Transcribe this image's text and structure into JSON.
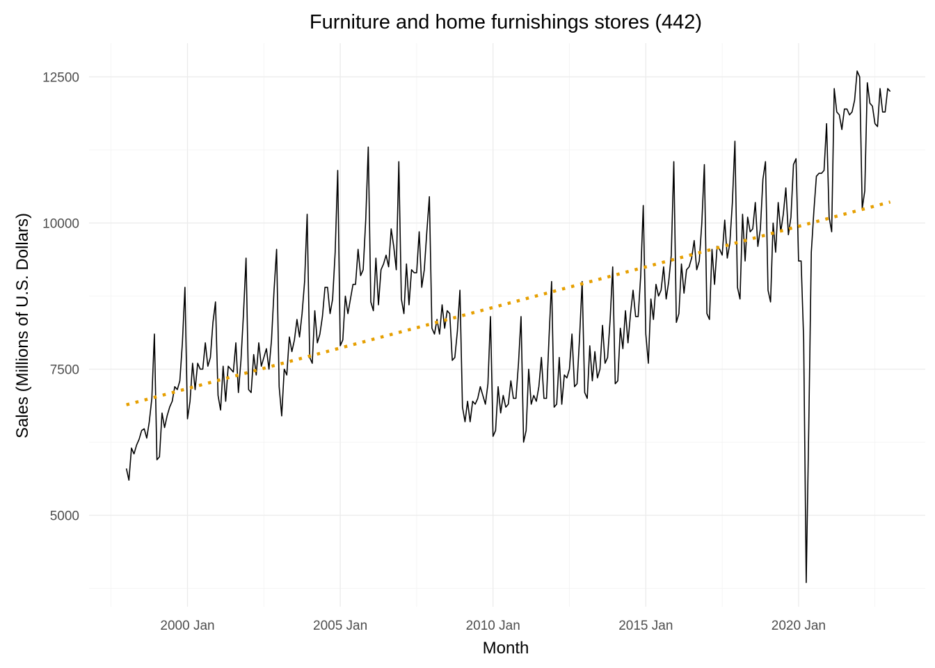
{
  "chart_data": {
    "type": "line",
    "title": "Furniture and home furnishings stores (442)",
    "xlabel": "Month",
    "ylabel": "Sales (Millions of U.S. Dollars)",
    "x_ticks": [
      "2000 Jan",
      "2005 Jan",
      "2010 Jan",
      "2015 Jan",
      "2020 Jan"
    ],
    "y_ticks": [
      5000,
      7500,
      10000,
      12500
    ],
    "ylim": [
      3700,
      13150
    ],
    "x_start": "1998 Jan",
    "grid": true,
    "colors": {
      "series": "#000000",
      "trend": "#E69F00"
    },
    "series": [
      {
        "style": "solid",
        "values": [
          5800,
          5600,
          6150,
          6050,
          6200,
          6300,
          6450,
          6480,
          6320,
          6600,
          7000,
          8100,
          5950,
          6000,
          6750,
          6500,
          6700,
          6850,
          6950,
          7200,
          7150,
          7300,
          7950,
          8900,
          6650,
          6950,
          7600,
          7150,
          7600,
          7500,
          7500,
          7950,
          7550,
          7700,
          8300,
          8650,
          7050,
          6800,
          7550,
          6950,
          7550,
          7500,
          7450,
          7950,
          7100,
          7650,
          8450,
          9400,
          7150,
          7100,
          7750,
          7400,
          7950,
          7550,
          7700,
          7850,
          7500,
          8000,
          8850,
          9550,
          7200,
          6700,
          7500,
          7400,
          8050,
          7800,
          8000,
          8350,
          8050,
          8450,
          9000,
          10150,
          7700,
          7600,
          8500,
          7950,
          8100,
          8400,
          8900,
          8900,
          8450,
          8700,
          9500,
          10900,
          7900,
          8000,
          8750,
          8450,
          8700,
          8950,
          8950,
          9550,
          9100,
          9200,
          10050,
          11300,
          8650,
          8500,
          9400,
          8600,
          9200,
          9300,
          9450,
          9250,
          9900,
          9600,
          9200,
          11050,
          8700,
          8450,
          9300,
          8600,
          9200,
          9150,
          9150,
          9850,
          8900,
          9200,
          9850,
          10450,
          8200,
          8100,
          8350,
          8100,
          8600,
          8200,
          8500,
          8450,
          7650,
          7700,
          8150,
          8850,
          6850,
          6600,
          6950,
          6600,
          6950,
          6900,
          7000,
          7200,
          7050,
          6900,
          7250,
          8400,
          6350,
          6450,
          7200,
          6750,
          7050,
          6850,
          6900,
          7300,
          7000,
          7000,
          7600,
          8400,
          6250,
          6450,
          7500,
          6900,
          7050,
          6950,
          7200,
          7700,
          7000,
          7000,
          8050,
          9000,
          6850,
          6900,
          7700,
          6900,
          7400,
          7350,
          7500,
          8100,
          7200,
          7250,
          8050,
          9000,
          7100,
          7000,
          7900,
          7300,
          7800,
          7350,
          7500,
          8250,
          7600,
          7700,
          8350,
          9250,
          7250,
          7300,
          8200,
          7850,
          8500,
          7950,
          8450,
          8850,
          8400,
          8400,
          9100,
          10300,
          8100,
          7600,
          8700,
          8350,
          8950,
          8750,
          8850,
          9250,
          8700,
          9000,
          9450,
          11050,
          8300,
          8450,
          9300,
          8800,
          9200,
          9250,
          9400,
          9700,
          9200,
          9350,
          10000,
          11000,
          8450,
          8350,
          9550,
          8950,
          9600,
          9550,
          9450,
          10050,
          9400,
          9650,
          10350,
          11400,
          8900,
          8700,
          10150,
          9350,
          10100,
          9850,
          9900,
          10350,
          9600,
          9900,
          10750,
          11050,
          8850,
          8650,
          10000,
          9500,
          10350,
          9850,
          10150,
          10600,
          9800,
          10100,
          11000,
          11100,
          9350,
          9350,
          8000,
          3850,
          6500,
          9500,
          10200,
          10800,
          10850,
          10850,
          10900,
          11700,
          10100,
          9850,
          12300,
          11900,
          11850,
          11600,
          11950,
          11950,
          11850,
          11900,
          12100,
          12600,
          12500,
          10250,
          10550,
          12400,
          12050,
          12000,
          11700,
          11650,
          12300,
          11900,
          11900,
          12300,
          12250
        ]
      },
      {
        "style": "dotted",
        "values": [
          6890,
          10360
        ]
      }
    ]
  }
}
